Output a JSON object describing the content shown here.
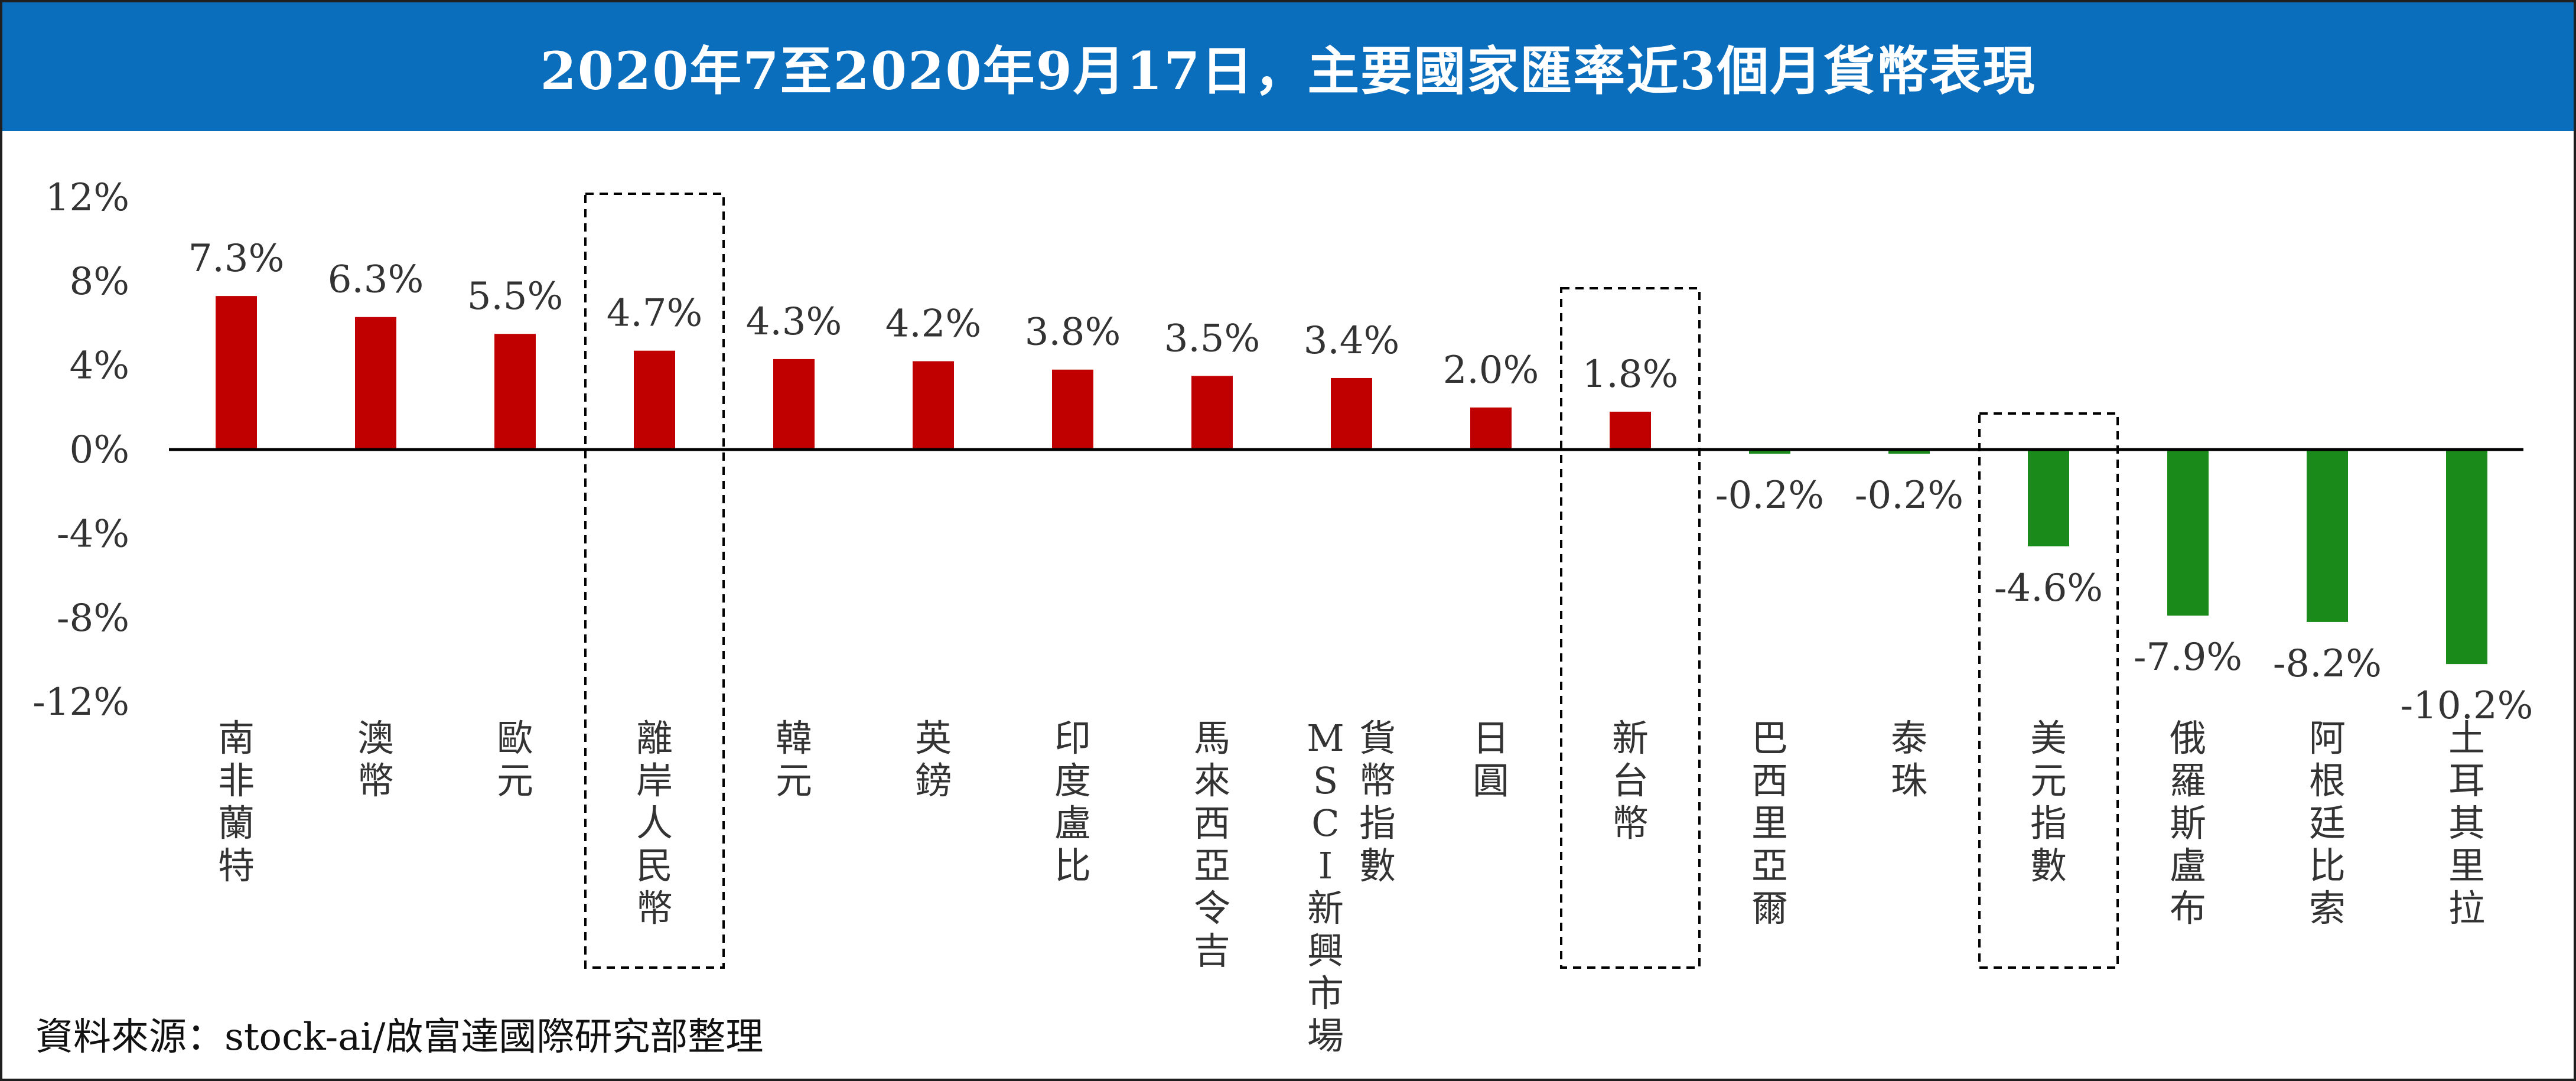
{
  "title": "2020年7至2020年9月17日，主要國家匯率近3個月貨幣表現",
  "source": "資料來源：stock-ai/啟富達國際研究部整理",
  "colors": {
    "header": "#0a6ebd",
    "positive": "#c00000",
    "negative": "#1a8a1a",
    "text": "#333333"
  },
  "chart_data": {
    "type": "bar",
    "title": "2020年7至2020年9月17日，主要國家匯率近3個月貨幣表現",
    "xlabel": "",
    "ylabel": "",
    "ylim": [
      -12,
      12
    ],
    "yticks": [
      12,
      8,
      4,
      0,
      -4,
      -8,
      -12
    ],
    "ytick_labels": [
      "12%",
      "8%",
      "4%",
      "0%",
      "-4%",
      "-8%",
      "-12%"
    ],
    "grid": false,
    "categories": [
      "南非蘭特",
      "澳幣",
      "歐元",
      "離岸人民幣",
      "韓元",
      "英鎊",
      "印度盧比",
      "馬來西亞令吉",
      "MSCI新興市場\n貨幣指數",
      "日圓",
      "新台幣",
      "巴西里亞爾",
      "泰珠",
      "美元指數",
      "俄羅斯盧布",
      "阿根廷比索",
      "土耳其里拉"
    ],
    "values": [
      7.3,
      6.3,
      5.5,
      4.7,
      4.3,
      4.2,
      3.8,
      3.5,
      3.4,
      2.0,
      1.8,
      -0.2,
      -0.2,
      -4.6,
      -7.9,
      -8.2,
      -10.2
    ],
    "value_labels": [
      "7.3%",
      "6.3%",
      "5.5%",
      "4.7%",
      "4.3%",
      "4.2%",
      "3.8%",
      "3.5%",
      "3.4%",
      "2.0%",
      "1.8%",
      "-0.2%",
      "-0.2%",
      "-4.6%",
      "-7.9%",
      "-8.2%",
      "-10.2%"
    ],
    "highlighted": [
      "離岸人民幣",
      "新台幣",
      "美元指數"
    ]
  }
}
